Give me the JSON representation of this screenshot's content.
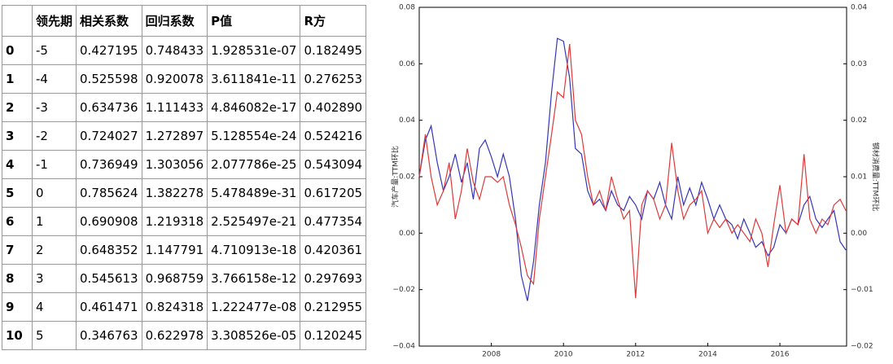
{
  "table": {
    "header": [
      "领先期",
      "相关系数",
      "回归系数",
      "P值",
      "R方"
    ],
    "rows": [
      [
        "0",
        "-5",
        "0.427195",
        "0.748433",
        "1.928531e-07",
        "0.182495"
      ],
      [
        "1",
        "-4",
        "0.525598",
        "0.920078",
        "3.611841e-11",
        "0.276253"
      ],
      [
        "2",
        "-3",
        "0.634736",
        "1.111433",
        "4.846082e-17",
        "0.402890"
      ],
      [
        "3",
        "-2",
        "0.724027",
        "1.272897",
        "5.128554e-24",
        "0.524216"
      ],
      [
        "4",
        "-1",
        "0.736949",
        "1.303056",
        "2.077786e-25",
        "0.543094"
      ],
      [
        "5",
        "0",
        "0.785624",
        "1.382278",
        "5.478489e-31",
        "0.617205"
      ],
      [
        "6",
        "1",
        "0.690908",
        "1.219318",
        "2.525497e-21",
        "0.477354"
      ],
      [
        "7",
        "2",
        "0.648352",
        "1.147791",
        "4.710913e-18",
        "0.420361"
      ],
      [
        "8",
        "3",
        "0.545613",
        "0.968759",
        "3.766158e-12",
        "0.297693"
      ],
      [
        "9",
        "4",
        "0.461471",
        "0.824318",
        "1.222477e-08",
        "0.212955"
      ],
      [
        "10",
        "5",
        "0.346763",
        "0.622978",
        "3.308526e-05",
        "0.120245"
      ]
    ]
  },
  "chart_data": {
    "type": "line",
    "ylabel": "汽车产量:TTM环比",
    "y2label": "钢材消费量:TTM环比",
    "x": [
      2006,
      2006.17,
      2006.33,
      2006.5,
      2006.67,
      2006.83,
      2007,
      2007.17,
      2007.33,
      2007.5,
      2007.67,
      2007.83,
      2008,
      2008.17,
      2008.33,
      2008.5,
      2008.67,
      2008.83,
      2009,
      2009.17,
      2009.33,
      2009.5,
      2009.67,
      2009.83,
      2010,
      2010.17,
      2010.33,
      2010.5,
      2010.67,
      2010.83,
      2011,
      2011.17,
      2011.33,
      2011.5,
      2011.67,
      2011.83,
      2012,
      2012.17,
      2012.33,
      2012.5,
      2012.67,
      2012.83,
      2013,
      2013.17,
      2013.33,
      2013.5,
      2013.67,
      2013.83,
      2014,
      2014.17,
      2014.33,
      2014.5,
      2014.67,
      2014.83,
      2015,
      2015.17,
      2015.33,
      2015.5,
      2015.67,
      2015.83,
      2016,
      2016.17,
      2016.33,
      2016.5,
      2016.67,
      2016.83,
      2017,
      2017.17,
      2017.33,
      2017.5,
      2017.67,
      2017.83
    ],
    "series": [
      {
        "color": "#3535b8",
        "values": [
          0.02,
          0.033,
          0.038,
          0.025,
          0.015,
          0.02,
          0.028,
          0.018,
          0.025,
          0.012,
          0.03,
          0.033,
          0.027,
          0.02,
          0.028,
          0.02,
          0.005,
          -0.015,
          -0.024,
          -0.01,
          0.01,
          0.025,
          0.05,
          0.069,
          0.068,
          0.055,
          0.03,
          0.028,
          0.015,
          0.01,
          0.012,
          0.008,
          0.015,
          0.01,
          0.008,
          0.013,
          0.01,
          0.005,
          0.015,
          0.012,
          0.018,
          0.01,
          0.005,
          0.02,
          0.01,
          0.016,
          0.01,
          0.018,
          0.012,
          0.005,
          0.01,
          0.005,
          0.003,
          -0.002,
          0.005,
          0,
          -0.005,
          -0.003,
          -0.008,
          -0.005,
          0.003,
          0,
          0.005,
          0.003,
          0.01,
          0.013,
          0.005,
          0.002,
          0.005,
          0.008,
          -0.003,
          -0.006
        ]
      },
      {
        "color": "#dd3a3a",
        "axis": "y2",
        "values": [
          0.01,
          0.0175,
          0.01,
          0.005,
          0.0075,
          0.0125,
          0.0025,
          0.0075,
          0.015,
          0.009,
          0.006,
          0.01,
          0.01,
          0.009,
          0.01,
          0.005,
          0.0015,
          -0.0025,
          -0.0075,
          -0.009,
          0.0025,
          0.01,
          0.0175,
          0.025,
          0.024,
          0.0335,
          0.02,
          0.0175,
          0.01,
          0.005,
          0.0075,
          0.004,
          0.01,
          0.006,
          0.0025,
          0.004,
          -0.0115,
          0.005,
          0.0075,
          0.006,
          0.0025,
          0.005,
          0.016,
          0.0075,
          0.0025,
          0.005,
          0.006,
          0.0075,
          0,
          0.0025,
          0.001,
          0.0025,
          0,
          0.0015,
          0,
          -0.0015,
          0.0025,
          0,
          -0.006,
          0.0015,
          0.0085,
          0,
          0.0025,
          0.0015,
          0.014,
          0.0025,
          0,
          0.0025,
          0.0015,
          0.005,
          0.006,
          0.004
        ]
      }
    ],
    "xlim": [
      2006,
      2017.85
    ],
    "xticks": [
      2008,
      2010,
      2012,
      2014,
      2016
    ],
    "ylim": [
      -0.04,
      0.08
    ],
    "yticks": [
      {
        "value": -0.04,
        "label": "−0.04"
      },
      {
        "value": -0.02,
        "label": "−0.02"
      },
      {
        "value": 0,
        "label": "0.00"
      },
      0.02,
      0.04,
      0.06,
      0.08
    ],
    "y2lim": [
      -0.02,
      0.04
    ],
    "y2ticks": [
      {
        "value": -0.02,
        "label": "−0.02"
      },
      {
        "value": -0.01,
        "label": "−0.01"
      },
      {
        "value": 0,
        "label": "0.00"
      },
      0.01,
      0.02,
      0.03,
      0.04
    ],
    "grid": false
  }
}
